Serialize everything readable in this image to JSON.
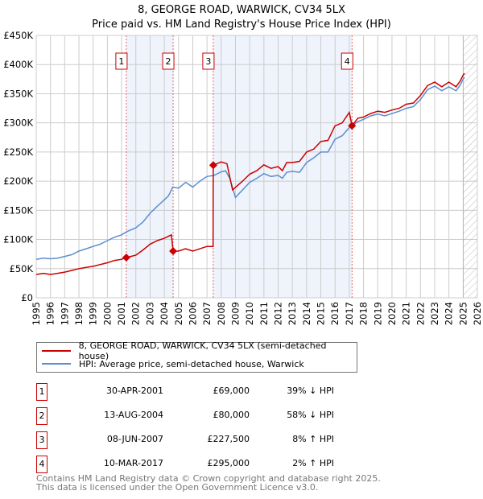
{
  "title": "8, GEORGE ROAD, WARWICK, CV34 5LX",
  "subtitle": "Price paid vs. HM Land Registry's House Price Index (HPI)",
  "colors": {
    "price": "#cc0000",
    "hpi": "#5b8fd0",
    "band": "#eef3fc",
    "grid": "#cccccc"
  },
  "legend": {
    "price": "8, GEORGE ROAD, WARWICK, CV34 5LX (semi-detached house)",
    "hpi": "HPI: Average price, semi-detached house, Warwick"
  },
  "sales": [
    {
      "n": "1",
      "date": "30-APR-2001",
      "price": "£69,000",
      "hpi": "39% ↓ HPI"
    },
    {
      "n": "2",
      "date": "13-AUG-2004",
      "price": "£80,000",
      "hpi": "58% ↓ HPI"
    },
    {
      "n": "3",
      "date": "08-JUN-2007",
      "price": "£227,500",
      "hpi": "8% ↑ HPI"
    },
    {
      "n": "4",
      "date": "10-MAR-2017",
      "price": "£295,000",
      "hpi": "2% ↑ HPI"
    }
  ],
  "footer": [
    "Contains HM Land Registry data © Crown copyright and database right 2025.",
    "This data is licensed under the Open Government Licence v3.0."
  ],
  "chart_data": {
    "type": "line",
    "xlim": [
      1995,
      2026
    ],
    "ylim": [
      0,
      450000
    ],
    "yticks": [
      0,
      50000,
      100000,
      150000,
      200000,
      250000,
      300000,
      350000,
      400000,
      450000
    ],
    "ytick_labels": [
      "£0",
      "£50K",
      "£100K",
      "£150K",
      "£200K",
      "£250K",
      "£300K",
      "£350K",
      "£400K",
      "£450K"
    ],
    "xticks": [
      "1995",
      "1996",
      "1997",
      "1998",
      "1999",
      "2000",
      "2001",
      "2002",
      "2003",
      "2004",
      "2005",
      "2006",
      "2007",
      "2008",
      "2009",
      "2010",
      "2011",
      "2012",
      "2013",
      "2014",
      "2015",
      "2016",
      "2017",
      "2018",
      "2019",
      "2020",
      "2021",
      "2022",
      "2023",
      "2024",
      "2025",
      "2026"
    ],
    "grid": true,
    "forecast_hatch_from": 2025.0,
    "shaded_bands": [
      [
        2001.33,
        2004.62
      ],
      [
        2007.44,
        2017.19
      ]
    ],
    "sale_points": [
      {
        "label": "1",
        "x": 2001.33,
        "y": 69000
      },
      {
        "label": "2",
        "x": 2004.62,
        "y": 80000
      },
      {
        "label": "3",
        "x": 2007.44,
        "y": 227500
      },
      {
        "label": "4",
        "x": 2017.19,
        "y": 295000
      }
    ],
    "series": [
      {
        "name": "HPI",
        "x": [
          1995,
          1995.5,
          1996,
          1996.5,
          1997,
          1997.5,
          1998,
          1998.5,
          1999,
          1999.5,
          2000,
          2000.5,
          2001,
          2001.33,
          2002,
          2002.5,
          2003,
          2003.5,
          2004,
          2004.3,
          2004.6,
          2005,
          2005.5,
          2006,
          2006.5,
          2007,
          2007.5,
          2008,
          2008.3,
          2008.6,
          2009,
          2009.5,
          2010,
          2010.5,
          2011,
          2011.5,
          2012,
          2012.3,
          2012.6,
          2013,
          2013.5,
          2014,
          2014.5,
          2015,
          2015.5,
          2016,
          2016.5,
          2017,
          2017.2,
          2017.6,
          2018,
          2018.5,
          2019,
          2019.5,
          2020,
          2020.5,
          2021,
          2021.5,
          2022,
          2022.5,
          2023,
          2023.5,
          2024,
          2024.5,
          2024.8,
          2025,
          2025.1
        ],
        "y": [
          66000,
          68000,
          67000,
          68000,
          71000,
          74000,
          80000,
          84000,
          88000,
          92000,
          98000,
          104000,
          108000,
          113000,
          120000,
          130000,
          145000,
          157000,
          168000,
          175000,
          190000,
          188000,
          198000,
          190000,
          200000,
          208000,
          210000,
          216000,
          218000,
          205000,
          172000,
          185000,
          198000,
          205000,
          213000,
          208000,
          210000,
          205000,
          215000,
          217000,
          215000,
          232000,
          240000,
          250000,
          250000,
          272000,
          278000,
          292000,
          295000,
          302000,
          306000,
          312000,
          315000,
          312000,
          316000,
          320000,
          325000,
          328000,
          340000,
          357000,
          363000,
          355000,
          362000,
          355000,
          365000,
          375000,
          378000
        ]
      },
      {
        "name": "Price paid",
        "x": [
          1995,
          1995.5,
          1996,
          1996.5,
          1997,
          1997.5,
          1998,
          1998.5,
          1999,
          1999.5,
          2000,
          2000.5,
          2001,
          2001.33,
          2002,
          2002.5,
          2003,
          2003.5,
          2004,
          2004.5,
          2004.62,
          2005,
          2005.5,
          2006,
          2006.5,
          2007,
          2007.43,
          2007.44,
          2008,
          2008.4,
          2008.8,
          2009.5,
          2010,
          2010.5,
          2011,
          2011.5,
          2012,
          2012.3,
          2012.6,
          2013,
          2013.5,
          2014,
          2014.5,
          2015,
          2015.5,
          2016,
          2016.5,
          2017,
          2017.19,
          2017.6,
          2018,
          2018.5,
          2019,
          2019.5,
          2020,
          2020.5,
          2021,
          2021.5,
          2022,
          2022.5,
          2023,
          2023.5,
          2024,
          2024.5,
          2024.8,
          2025,
          2025.1
        ],
        "y": [
          40000,
          42000,
          40000,
          42000,
          44000,
          47000,
          50000,
          52000,
          54000,
          57000,
          60000,
          64000,
          66000,
          69000,
          73000,
          82000,
          92000,
          98000,
          102000,
          108000,
          80000,
          80000,
          84000,
          80000,
          84000,
          88000,
          88000,
          227500,
          233000,
          230000,
          185000,
          200000,
          212000,
          218000,
          228000,
          222000,
          225000,
          218000,
          232000,
          232000,
          234000,
          250000,
          255000,
          268000,
          270000,
          295000,
          300000,
          318000,
          295000,
          308000,
          310000,
          316000,
          320000,
          318000,
          322000,
          325000,
          332000,
          334000,
          347000,
          364000,
          370000,
          362000,
          370000,
          362000,
          372000,
          382000,
          385000
        ]
      }
    ]
  }
}
